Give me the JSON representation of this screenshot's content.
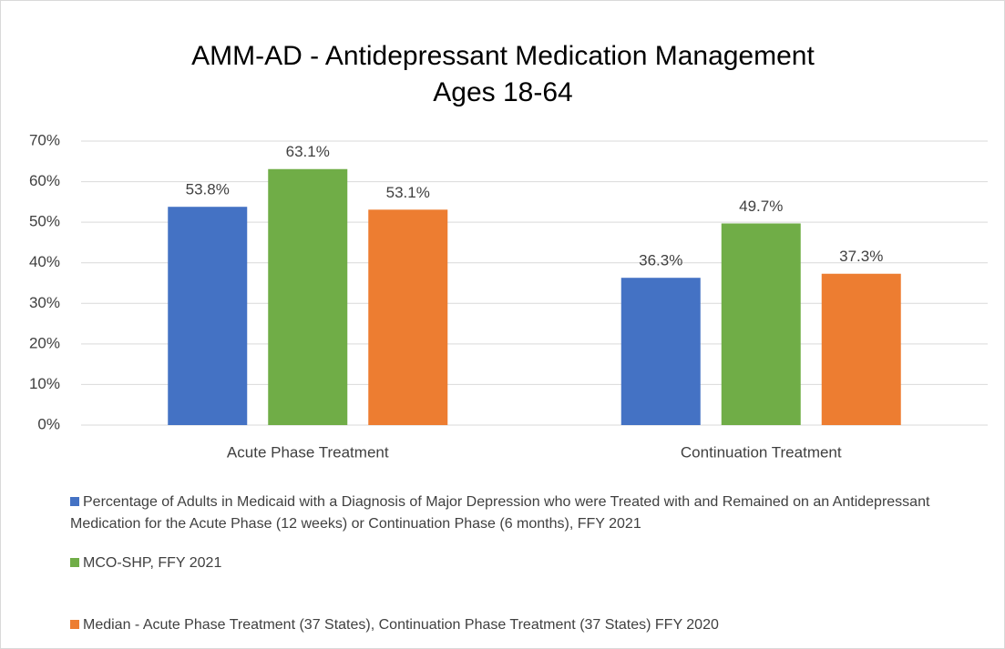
{
  "chart_data": {
    "type": "bar",
    "title": "AMM-AD - Antidepressant Medication Management",
    "subtitle": "Ages 18-64",
    "categories": [
      "Acute Phase Treatment",
      "Continuation Treatment"
    ],
    "series": [
      {
        "name": "Percentage of Adults in Medicaid with a Diagnosis of Major Depression who were Treated with and Remained on an Antidepressant Medication for the Acute Phase (12 weeks) or Continuation Phase (6 months), FFY 2021",
        "color": "#4472c4",
        "values": [
          53.8,
          36.3
        ],
        "value_labels": [
          "53.8%",
          "36.3%"
        ]
      },
      {
        "name": "MCO-SHP, FFY 2021",
        "color": "#70ad47",
        "values": [
          63.1,
          49.7
        ],
        "value_labels": [
          "63.1%",
          "49.7%"
        ]
      },
      {
        "name": "Median - Acute Phase Treatment (37 States), Continuation Phase Treatment (37 States) FFY 2020",
        "color": "#ed7d31",
        "values": [
          53.1,
          37.3
        ],
        "value_labels": [
          "53.1%",
          "37.3%"
        ]
      }
    ],
    "ylim": [
      0,
      70
    ],
    "yticks": [
      {
        "value": 0,
        "label": "0%"
      },
      {
        "value": 10,
        "label": "10%"
      },
      {
        "value": 20,
        "label": "20%"
      },
      {
        "value": 30,
        "label": "30%"
      },
      {
        "value": 40,
        "label": "40%"
      },
      {
        "value": 50,
        "label": "50%"
      },
      {
        "value": 60,
        "label": "60%"
      },
      {
        "value": 70,
        "label": "70%"
      }
    ],
    "grid": true,
    "legend": "bottom"
  }
}
